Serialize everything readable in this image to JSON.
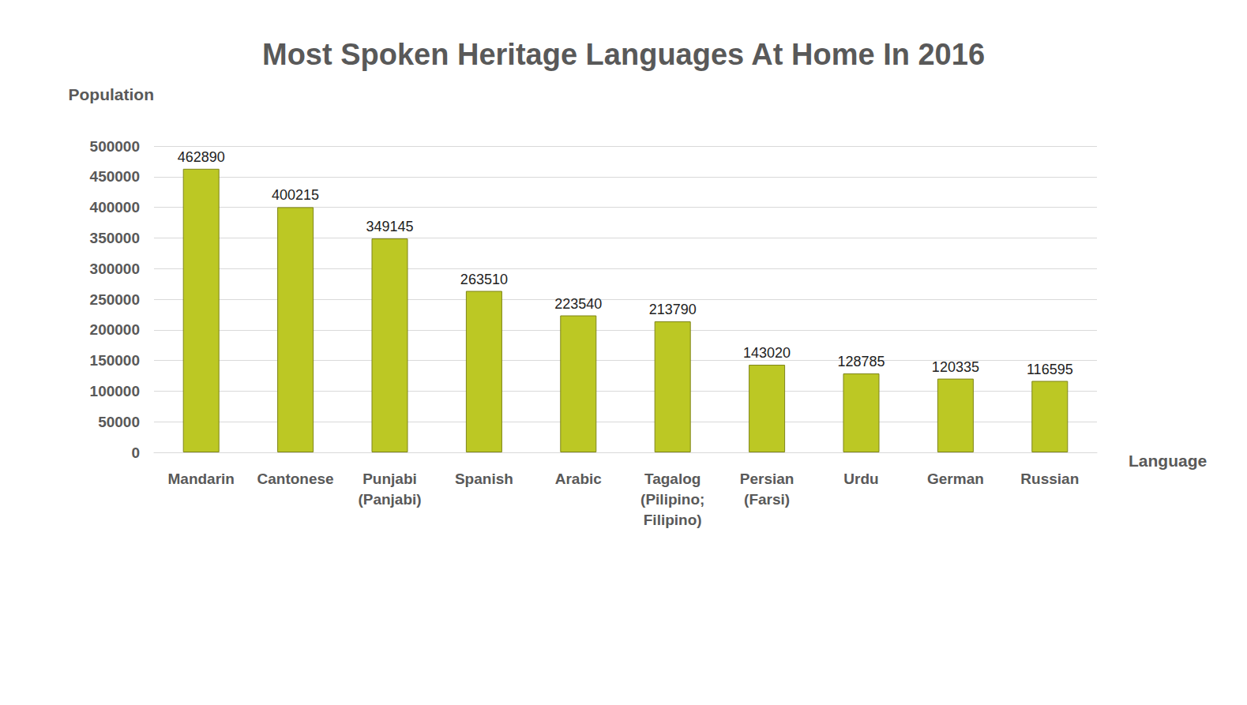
{
  "chart_data": {
    "type": "bar",
    "title": "Most Spoken Heritage Languages At Home In 2016",
    "x_label": "Language",
    "y_label": "Population",
    "categories": [
      "Mandarin",
      "Cantonese",
      "Punjabi (Panjabi)",
      "Spanish",
      "Arabic",
      "Tagalog (Pilipino; Filipino)",
      "Persian (Farsi)",
      "Urdu",
      "German",
      "Russian"
    ],
    "values": [
      462890,
      400215,
      349145,
      263510,
      223540,
      213790,
      143020,
      128785,
      120335,
      116595
    ],
    "color": "#bcc824",
    "ylim": [
      0,
      500000
    ],
    "yticks": [
      0,
      50000,
      100000,
      150000,
      200000,
      250000,
      300000,
      350000,
      400000,
      450000,
      500000
    ],
    "grid": true,
    "data_labels": true
  }
}
